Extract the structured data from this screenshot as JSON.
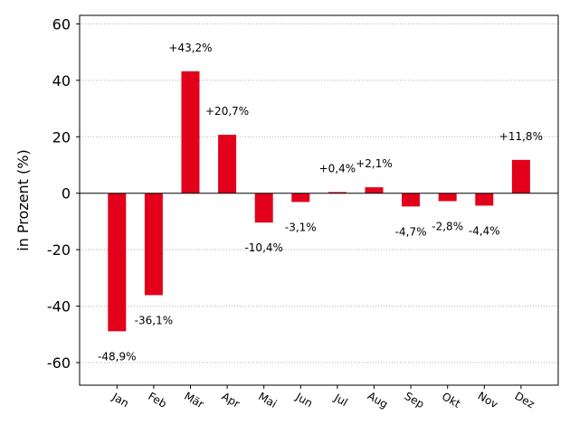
{
  "chart_data": {
    "type": "bar",
    "categories": [
      "Jan",
      "Feb",
      "Mär",
      "Apr",
      "Mai",
      "Jun",
      "Jul",
      "Aug",
      "Sep",
      "Okt",
      "Nov",
      "Dez"
    ],
    "values": [
      -48.9,
      -36.1,
      43.2,
      20.7,
      -10.4,
      -3.1,
      0.4,
      2.1,
      -4.7,
      -2.8,
      -4.4,
      11.8
    ],
    "data_labels": [
      "-48,9%",
      "-36,1%",
      "+43,2%",
      "+20,7%",
      "-10,4%",
      "-3,1%",
      "+0,4%",
      "+2,1%",
      "-4,7%",
      "-2,8%",
      "-4,4%",
      "+11,8%"
    ],
    "ylabel": "in Prozent (%)",
    "ylim": [
      -68,
      63
    ],
    "yticks": [
      60,
      40,
      20,
      0,
      -20,
      -40,
      -60
    ],
    "ytick_labels": [
      "60",
      "40",
      "20",
      "0",
      "-20",
      "-40",
      "-60"
    ],
    "grid": "horizontal dotted",
    "bar_color": "#e2001a"
  }
}
